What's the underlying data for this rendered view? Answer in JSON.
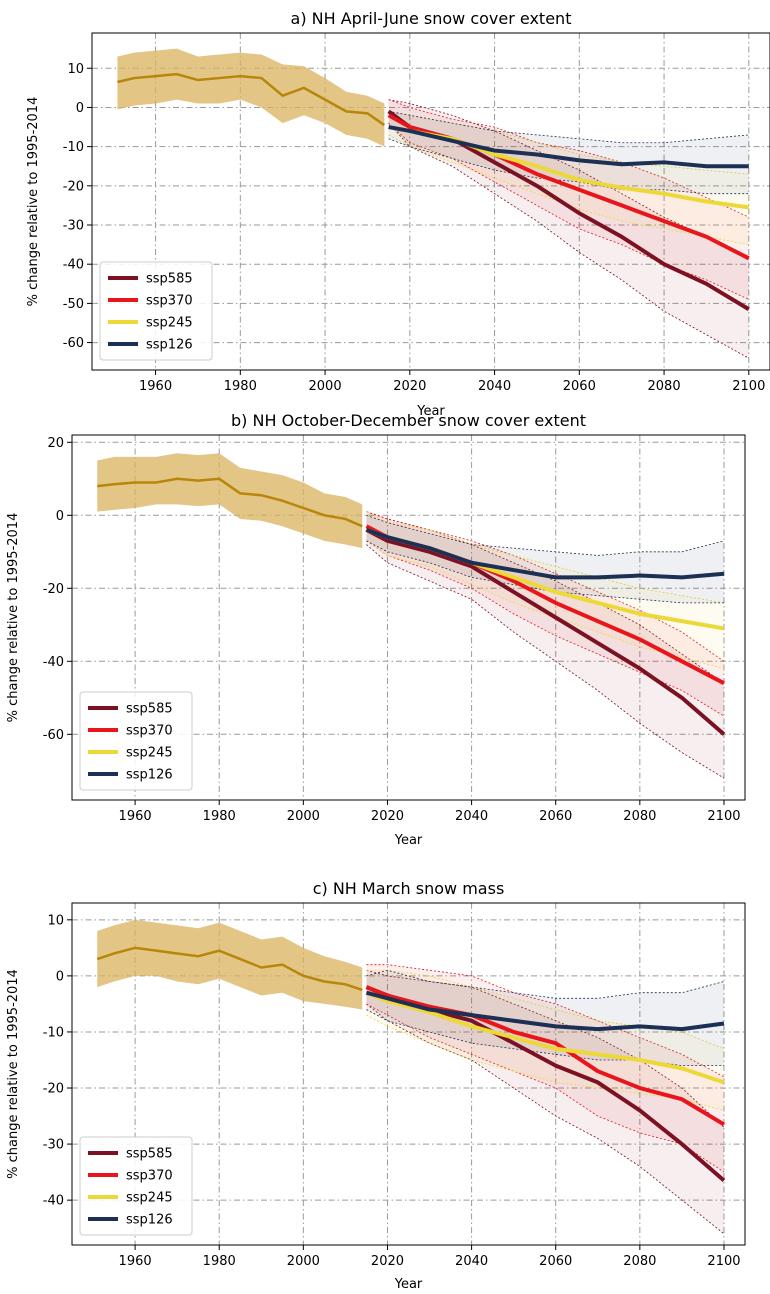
{
  "x_label": "Year",
  "y_label": "% change relative to 1995-2014",
  "colors": {
    "historical": "#b8860b",
    "historical_band": "#d9b25c",
    "ssp585": "#7b1123",
    "ssp370": "#e8151b",
    "ssp245": "#ecd836",
    "ssp126": "#1c2f55"
  },
  "legend": [
    "ssp585",
    "ssp370",
    "ssp245",
    "ssp126"
  ],
  "chart_data": [
    {
      "type": "line",
      "title": "a) NH April-June snow cover extent",
      "xlabel": "Year",
      "ylabel": "% change relative to 1995-2014",
      "xlim": [
        1945,
        2105
      ],
      "ylim": [
        -67,
        19
      ],
      "xticks": [
        1960,
        1980,
        2000,
        2020,
        2040,
        2060,
        2080,
        2100
      ],
      "yticks": [
        10,
        0,
        -10,
        -20,
        -30,
        -40,
        -50,
        -60
      ],
      "legend_position": "lower-left",
      "historical": {
        "x": [
          1951,
          1955,
          1960,
          1965,
          1970,
          1975,
          1980,
          1985,
          1990,
          1995,
          2000,
          2005,
          2010,
          2014
        ],
        "y": [
          6.5,
          7.5,
          8,
          8.5,
          7,
          7.5,
          8,
          7.5,
          3,
          5,
          2,
          -1,
          -1.5,
          -4.5
        ],
        "low": [
          -0.5,
          0.5,
          1,
          2,
          1,
          1,
          2,
          0,
          -4,
          -2,
          -4,
          -7,
          -8,
          -10
        ],
        "high": [
          13,
          14,
          14.5,
          15,
          13,
          13.5,
          14,
          13.5,
          11,
          10.5,
          7.5,
          4,
          3,
          1
        ]
      },
      "series": [
        {
          "name": "ssp585",
          "x": [
            2015,
            2020,
            2030,
            2040,
            2050,
            2060,
            2070,
            2080,
            2090,
            2100
          ],
          "y": [
            -1,
            -5,
            -8,
            -14,
            -20,
            -27,
            -33,
            -40,
            -45,
            -51.5
          ],
          "low": [
            -4,
            -10,
            -15,
            -22,
            -29,
            -37,
            -44,
            -52,
            -58,
            -64
          ],
          "high": [
            2,
            1,
            -2,
            -6,
            -11,
            -16,
            -22,
            -28,
            -33,
            -39
          ]
        },
        {
          "name": "ssp370",
          "x": [
            2015,
            2020,
            2030,
            2040,
            2050,
            2060,
            2070,
            2080,
            2090,
            2100
          ],
          "y": [
            -2,
            -5,
            -8,
            -12,
            -17,
            -21,
            -25,
            -29,
            -33,
            -38.5
          ],
          "low": [
            -4,
            -9,
            -13,
            -19,
            -25,
            -31,
            -35,
            -40,
            -44,
            -49
          ],
          "high": [
            2,
            0,
            -3,
            -5,
            -9,
            -11,
            -14,
            -18,
            -23,
            -28
          ]
        },
        {
          "name": "ssp245",
          "x": [
            2015,
            2020,
            2030,
            2040,
            2050,
            2060,
            2070,
            2080,
            2090,
            2100
          ],
          "y": [
            -5,
            -6,
            -8,
            -12,
            -15,
            -18.5,
            -20.5,
            -22,
            -24,
            -25.5
          ],
          "low": [
            -7,
            -10,
            -14,
            -18,
            -22,
            -26,
            -29,
            -31,
            -33,
            -35
          ],
          "high": [
            -1,
            -2,
            -4,
            -6,
            -9,
            -12,
            -14,
            -15,
            -16,
            -17
          ]
        },
        {
          "name": "ssp126",
          "x": [
            2015,
            2020,
            2030,
            2040,
            2050,
            2060,
            2070,
            2080,
            2090,
            2100
          ],
          "y": [
            -5,
            -6,
            -8.5,
            -11,
            -12,
            -13.5,
            -14.5,
            -14,
            -15,
            -15
          ],
          "low": [
            -8,
            -10,
            -13,
            -16,
            -18,
            -19,
            -21,
            -21,
            -22,
            -22
          ],
          "high": [
            -1,
            -2,
            -4,
            -6,
            -7,
            -8,
            -9,
            -9,
            -8,
            -7
          ]
        }
      ]
    },
    {
      "type": "line",
      "title": "b) NH October-December snow cover extent",
      "xlabel": "Year",
      "ylabel": "% change relative to 1995-2014",
      "xlim": [
        1945,
        2105
      ],
      "ylim": [
        -78,
        22
      ],
      "xticks": [
        1960,
        1980,
        2000,
        2020,
        2040,
        2060,
        2080,
        2100
      ],
      "yticks": [
        20,
        0,
        -20,
        -40,
        -60
      ],
      "legend_position": "lower-left",
      "historical": {
        "x": [
          1951,
          1955,
          1960,
          1965,
          1970,
          1975,
          1980,
          1985,
          1990,
          1995,
          2000,
          2005,
          2010,
          2014
        ],
        "y": [
          8,
          8.5,
          9,
          9,
          10,
          9.5,
          10,
          6,
          5.5,
          4,
          2,
          0,
          -1,
          -3
        ],
        "low": [
          1,
          1.5,
          2,
          3,
          3,
          2.5,
          3,
          -1,
          -1.5,
          -3,
          -5,
          -7,
          -8,
          -9
        ],
        "high": [
          15,
          16,
          16,
          16,
          17,
          16.5,
          17,
          13,
          12,
          11,
          9,
          6,
          5,
          3
        ]
      },
      "series": [
        {
          "name": "ssp585",
          "x": [
            2015,
            2020,
            2030,
            2040,
            2050,
            2060,
            2070,
            2080,
            2090,
            2100
          ],
          "y": [
            -4,
            -7,
            -10,
            -14,
            -21,
            -28,
            -35,
            -42,
            -50,
            -60
          ],
          "low": [
            -8,
            -13,
            -18,
            -23,
            -32,
            -40,
            -48,
            -57,
            -65,
            -72
          ],
          "high": [
            1,
            -1,
            -4,
            -8,
            -13,
            -18,
            -24,
            -30,
            -38,
            -46
          ]
        },
        {
          "name": "ssp370",
          "x": [
            2015,
            2020,
            2030,
            2040,
            2050,
            2060,
            2070,
            2080,
            2090,
            2100
          ],
          "y": [
            -3,
            -6,
            -9,
            -13,
            -18,
            -24,
            -29,
            -34,
            -40,
            -46
          ],
          "low": [
            -7,
            -11,
            -15,
            -20,
            -27,
            -33,
            -38,
            -43,
            -48,
            -55
          ],
          "high": [
            1,
            -1,
            -4,
            -7,
            -11,
            -16,
            -21,
            -26,
            -32,
            -40
          ]
        },
        {
          "name": "ssp245",
          "x": [
            2015,
            2020,
            2030,
            2040,
            2050,
            2060,
            2070,
            2080,
            2090,
            2100
          ],
          "y": [
            -4,
            -6,
            -9,
            -13,
            -17,
            -21,
            -24,
            -27,
            -29,
            -31
          ],
          "low": [
            -7,
            -11,
            -14,
            -19,
            -24,
            -28,
            -32,
            -36,
            -39,
            -42
          ],
          "high": [
            1,
            -2,
            -4,
            -8,
            -11,
            -14,
            -17,
            -20,
            -22,
            -24
          ]
        },
        {
          "name": "ssp126",
          "x": [
            2015,
            2020,
            2030,
            2040,
            2050,
            2060,
            2070,
            2080,
            2090,
            2100
          ],
          "y": [
            -4,
            -6,
            -9,
            -13,
            -15,
            -17,
            -17,
            -16.5,
            -17,
            -16
          ],
          "low": [
            -7,
            -10,
            -13,
            -17,
            -19,
            -21,
            -22,
            -23,
            -24,
            -24
          ],
          "high": [
            0,
            -2,
            -5,
            -8,
            -9,
            -10,
            -11,
            -10,
            -10,
            -7
          ]
        }
      ]
    },
    {
      "type": "line",
      "title": "c) NH March snow mass",
      "xlabel": "Year",
      "ylabel": "% change relative to 1995-2014",
      "xlim": [
        1945,
        2105
      ],
      "ylim": [
        -48,
        13
      ],
      "xticks": [
        1960,
        1980,
        2000,
        2020,
        2040,
        2060,
        2080,
        2100
      ],
      "yticks": [
        10,
        0,
        -10,
        -20,
        -30,
        -40
      ],
      "legend_position": "lower-left",
      "historical": {
        "x": [
          1951,
          1955,
          1960,
          1965,
          1970,
          1975,
          1980,
          1985,
          1990,
          1995,
          2000,
          2005,
          2010,
          2014
        ],
        "y": [
          3,
          4,
          5,
          4.5,
          4,
          3.5,
          4.5,
          3,
          1.5,
          2,
          0,
          -1,
          -1.5,
          -2.5
        ],
        "low": [
          -2,
          -1,
          0,
          0,
          -1,
          -1.5,
          -0.5,
          -2,
          -3.5,
          -3,
          -4.5,
          -5,
          -5.5,
          -6
        ],
        "high": [
          8,
          9,
          10,
          9.5,
          9,
          8.5,
          9.5,
          8,
          6.5,
          7,
          5,
          3.5,
          2.5,
          1.5
        ]
      },
      "series": [
        {
          "name": "ssp585",
          "x": [
            2015,
            2020,
            2030,
            2040,
            2050,
            2060,
            2070,
            2080,
            2090,
            2100
          ],
          "y": [
            -2,
            -3.5,
            -6,
            -8,
            -12,
            -16,
            -19,
            -24,
            -30,
            -36.5
          ],
          "low": [
            -5,
            -8,
            -12,
            -15,
            -20,
            -25,
            -29,
            -34,
            -40,
            -46
          ],
          "high": [
            1,
            0,
            -1,
            -2,
            -5,
            -8,
            -11,
            -15,
            -20,
            -27
          ]
        },
        {
          "name": "ssp370",
          "x": [
            2015,
            2020,
            2030,
            2040,
            2050,
            2060,
            2070,
            2080,
            2090,
            2100
          ],
          "y": [
            -2,
            -3.5,
            -5.5,
            -7,
            -10,
            -12,
            -17,
            -20,
            -22,
            -26.5
          ],
          "low": [
            -5,
            -7,
            -11,
            -14,
            -17,
            -20,
            -25,
            -28,
            -30,
            -35
          ],
          "high": [
            2,
            2,
            1,
            0,
            -3,
            -5,
            -8,
            -11,
            -14,
            -18
          ]
        },
        {
          "name": "ssp245",
          "x": [
            2015,
            2020,
            2030,
            2040,
            2050,
            2060,
            2070,
            2080,
            2090,
            2100
          ],
          "y": [
            -3,
            -4.5,
            -6.5,
            -9,
            -11,
            -13,
            -14,
            -15,
            -16.5,
            -19
          ],
          "low": [
            -7,
            -9,
            -12,
            -15,
            -17,
            -19,
            -20,
            -21,
            -22,
            -24
          ],
          "high": [
            1,
            1,
            0,
            -2,
            -4,
            -6,
            -8,
            -9,
            -10,
            -13
          ]
        },
        {
          "name": "ssp126",
          "x": [
            2015,
            2020,
            2030,
            2040,
            2050,
            2060,
            2070,
            2080,
            2090,
            2100
          ],
          "y": [
            -3,
            -4,
            -6,
            -7,
            -8,
            -9,
            -9.5,
            -9,
            -9.5,
            -8.5
          ],
          "low": [
            -6,
            -8,
            -10,
            -12,
            -13,
            -14,
            -15,
            -15,
            -16,
            -16
          ],
          "high": [
            0,
            1,
            -1,
            -2,
            -3,
            -4,
            -4,
            -3,
            -3,
            -1
          ]
        }
      ]
    }
  ]
}
